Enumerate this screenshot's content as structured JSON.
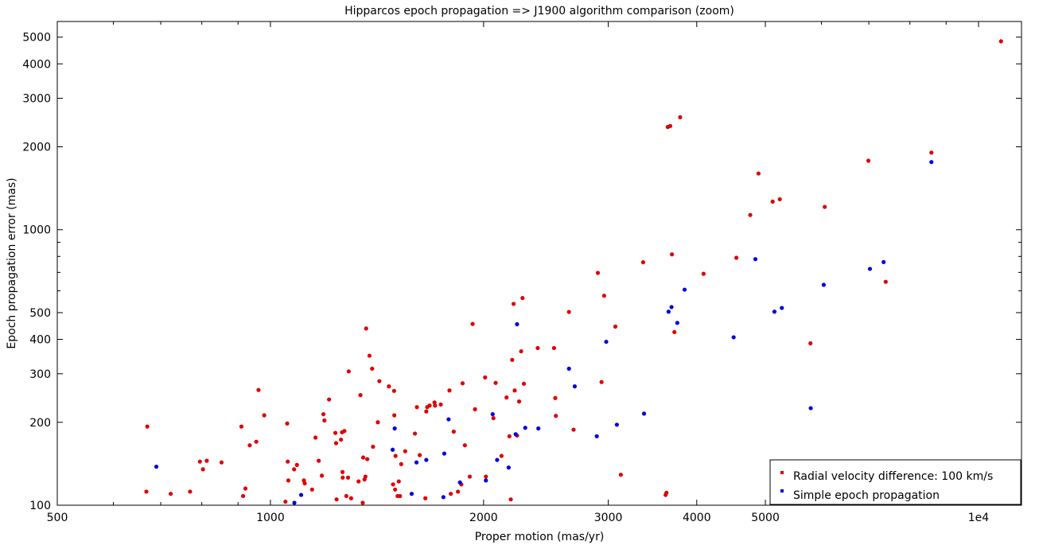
{
  "chart_data": {
    "type": "scatter",
    "title": "Hipparcos epoch propagation => J1900 algorithm comparison (zoom)",
    "xlabel": "Proper motion (mas/yr)",
    "ylabel": "Epoch propagation error (mas)",
    "xscale": "log",
    "yscale": "log",
    "xlim": [
      500,
      11500
    ],
    "ylim": [
      100,
      5700
    ],
    "xticks": [
      {
        "value": 500,
        "label": "500"
      },
      {
        "value": 1000,
        "label": "1000"
      },
      {
        "value": 2000,
        "label": "2000"
      },
      {
        "value": 3000,
        "label": "3000"
      },
      {
        "value": 4000,
        "label": "4000"
      },
      {
        "value": 5000,
        "label": "5000"
      },
      {
        "value": 10000,
        "label": "1e4"
      }
    ],
    "yticks": [
      {
        "value": 100,
        "label": "100"
      },
      {
        "value": 200,
        "label": "200"
      },
      {
        "value": 300,
        "label": "300"
      },
      {
        "value": 400,
        "label": "400"
      },
      {
        "value": 500,
        "label": "500"
      },
      {
        "value": 1000,
        "label": "1000"
      },
      {
        "value": 2000,
        "label": "2000"
      },
      {
        "value": 3000,
        "label": "3000"
      },
      {
        "value": 4000,
        "label": "4000"
      },
      {
        "value": 5000,
        "label": "5000"
      }
    ],
    "grid": false,
    "legend_position": "bottom-right",
    "series": [
      {
        "name": "Radial velocity difference: 100 km/s",
        "color": "#e00000",
        "points": [
          [
            670,
            193
          ],
          [
            668,
            112
          ],
          [
            723,
            110
          ],
          [
            770,
            112
          ],
          [
            795,
            144
          ],
          [
            803,
            135
          ],
          [
            813,
            145
          ],
          [
            853,
            143
          ],
          [
            910,
            193
          ],
          [
            915,
            108
          ],
          [
            922,
            115
          ],
          [
            935,
            165
          ],
          [
            955,
            170
          ],
          [
            962,
            262
          ],
          [
            980,
            212
          ],
          [
            1050,
            103
          ],
          [
            1056,
            198
          ],
          [
            1058,
            144
          ],
          [
            1060,
            123
          ],
          [
            1080,
            135
          ],
          [
            1090,
            140
          ],
          [
            1115,
            123
          ],
          [
            1118,
            120
          ],
          [
            1145,
            114
          ],
          [
            1158,
            176
          ],
          [
            1170,
            145
          ],
          [
            1182,
            128
          ],
          [
            1188,
            214
          ],
          [
            1192,
            203
          ],
          [
            1210,
            242
          ],
          [
            1235,
            183
          ],
          [
            1238,
            168
          ],
          [
            1240,
            105
          ],
          [
            1258,
            173
          ],
          [
            1262,
            184
          ],
          [
            1264,
            132
          ],
          [
            1265,
            126
          ],
          [
            1272,
            186
          ],
          [
            1280,
            108
          ],
          [
            1287,
            126
          ],
          [
            1290,
            306
          ],
          [
            1300,
            106
          ],
          [
            1332,
            122
          ],
          [
            1340,
            251
          ],
          [
            1350,
            102
          ],
          [
            1352,
            149
          ],
          [
            1358,
            124
          ],
          [
            1362,
            127
          ],
          [
            1365,
            438
          ],
          [
            1370,
            147
          ],
          [
            1380,
            349
          ],
          [
            1392,
            313
          ],
          [
            1396,
            163
          ],
          [
            1418,
            200
          ],
          [
            1425,
            282
          ],
          [
            1470,
            270
          ],
          [
            1490,
            119
          ],
          [
            1495,
            260
          ],
          [
            1496,
            212
          ],
          [
            1500,
            114
          ],
          [
            1502,
            151
          ],
          [
            1512,
            108
          ],
          [
            1518,
            122
          ],
          [
            1524,
            108
          ],
          [
            1530,
            141
          ],
          [
            1550,
            157
          ],
          [
            1600,
            182
          ],
          [
            1610,
            227
          ],
          [
            1625,
            152
          ],
          [
            1655,
            106
          ],
          [
            1660,
            219
          ],
          [
            1665,
            227
          ],
          [
            1678,
            230
          ],
          [
            1705,
            236
          ],
          [
            1708,
            230
          ],
          [
            1740,
            232
          ],
          [
            1790,
            261
          ],
          [
            1798,
            110
          ],
          [
            1815,
            185
          ],
          [
            1840,
            112
          ],
          [
            1860,
            119
          ],
          [
            1868,
            277
          ],
          [
            1882,
            165
          ],
          [
            1912,
            127
          ],
          [
            1930,
            455
          ],
          [
            1945,
            223
          ],
          [
            2010,
            291
          ],
          [
            2015,
            127
          ],
          [
            2065,
            207
          ],
          [
            2080,
            278
          ],
          [
            2120,
            151
          ],
          [
            2155,
            246
          ],
          [
            2175,
            178
          ],
          [
            2185,
            105
          ],
          [
            2195,
            337
          ],
          [
            2205,
            538
          ],
          [
            2213,
            261
          ],
          [
            2230,
            179
          ],
          [
            2245,
            238
          ],
          [
            2260,
            362
          ],
          [
            2270,
            565
          ],
          [
            2280,
            276
          ],
          [
            2385,
            372
          ],
          [
            2515,
            372
          ],
          [
            2525,
            245
          ],
          [
            2530,
            211
          ],
          [
            2640,
            503
          ],
          [
            2680,
            188
          ],
          [
            2900,
            697
          ],
          [
            2935,
            280
          ],
          [
            2960,
            576
          ],
          [
            3070,
            445
          ],
          [
            3125,
            129
          ],
          [
            3360,
            762
          ],
          [
            3615,
            109
          ],
          [
            3625,
            111
          ],
          [
            3640,
            2360
          ],
          [
            3670,
            2380
          ],
          [
            3690,
            814
          ],
          [
            3720,
            425
          ],
          [
            3790,
            2560
          ],
          [
            4090,
            692
          ],
          [
            4550,
            791
          ],
          [
            4760,
            1131
          ],
          [
            4890,
            1600
          ],
          [
            5120,
            1265
          ],
          [
            5240,
            1290
          ],
          [
            5790,
            387
          ],
          [
            6065,
            1210
          ],
          [
            6990,
            1780
          ],
          [
            7395,
            647
          ],
          [
            8580,
            1905
          ],
          [
            10760,
            4830
          ]
        ]
      },
      {
        "name": "Simple epoch propagation",
        "color": "#0000e0",
        "points": [
          [
            690,
            138
          ],
          [
            1081,
            102
          ],
          [
            1105,
            109
          ],
          [
            1488,
            159
          ],
          [
            1498,
            190
          ],
          [
            1583,
            110
          ],
          [
            1608,
            143
          ],
          [
            1660,
            146
          ],
          [
            1755,
            107
          ],
          [
            1760,
            154
          ],
          [
            1785,
            205
          ],
          [
            1852,
            121
          ],
          [
            2015,
            123
          ],
          [
            2060,
            214
          ],
          [
            2090,
            146
          ],
          [
            2170,
            137
          ],
          [
            2220,
            181
          ],
          [
            2230,
            454
          ],
          [
            2290,
            191
          ],
          [
            2390,
            190
          ],
          [
            2640,
            313
          ],
          [
            2690,
            270
          ],
          [
            2890,
            178
          ],
          [
            2980,
            392
          ],
          [
            3085,
            196
          ],
          [
            3370,
            215
          ],
          [
            3650,
            504
          ],
          [
            3685,
            524
          ],
          [
            3755,
            459
          ],
          [
            3845,
            606
          ],
          [
            4510,
            407
          ],
          [
            4840,
            782
          ],
          [
            5150,
            504
          ],
          [
            5275,
            520
          ],
          [
            5795,
            225
          ],
          [
            6045,
            631
          ],
          [
            7025,
            721
          ],
          [
            7345,
            763
          ],
          [
            8580,
            1760
          ]
        ]
      }
    ]
  }
}
